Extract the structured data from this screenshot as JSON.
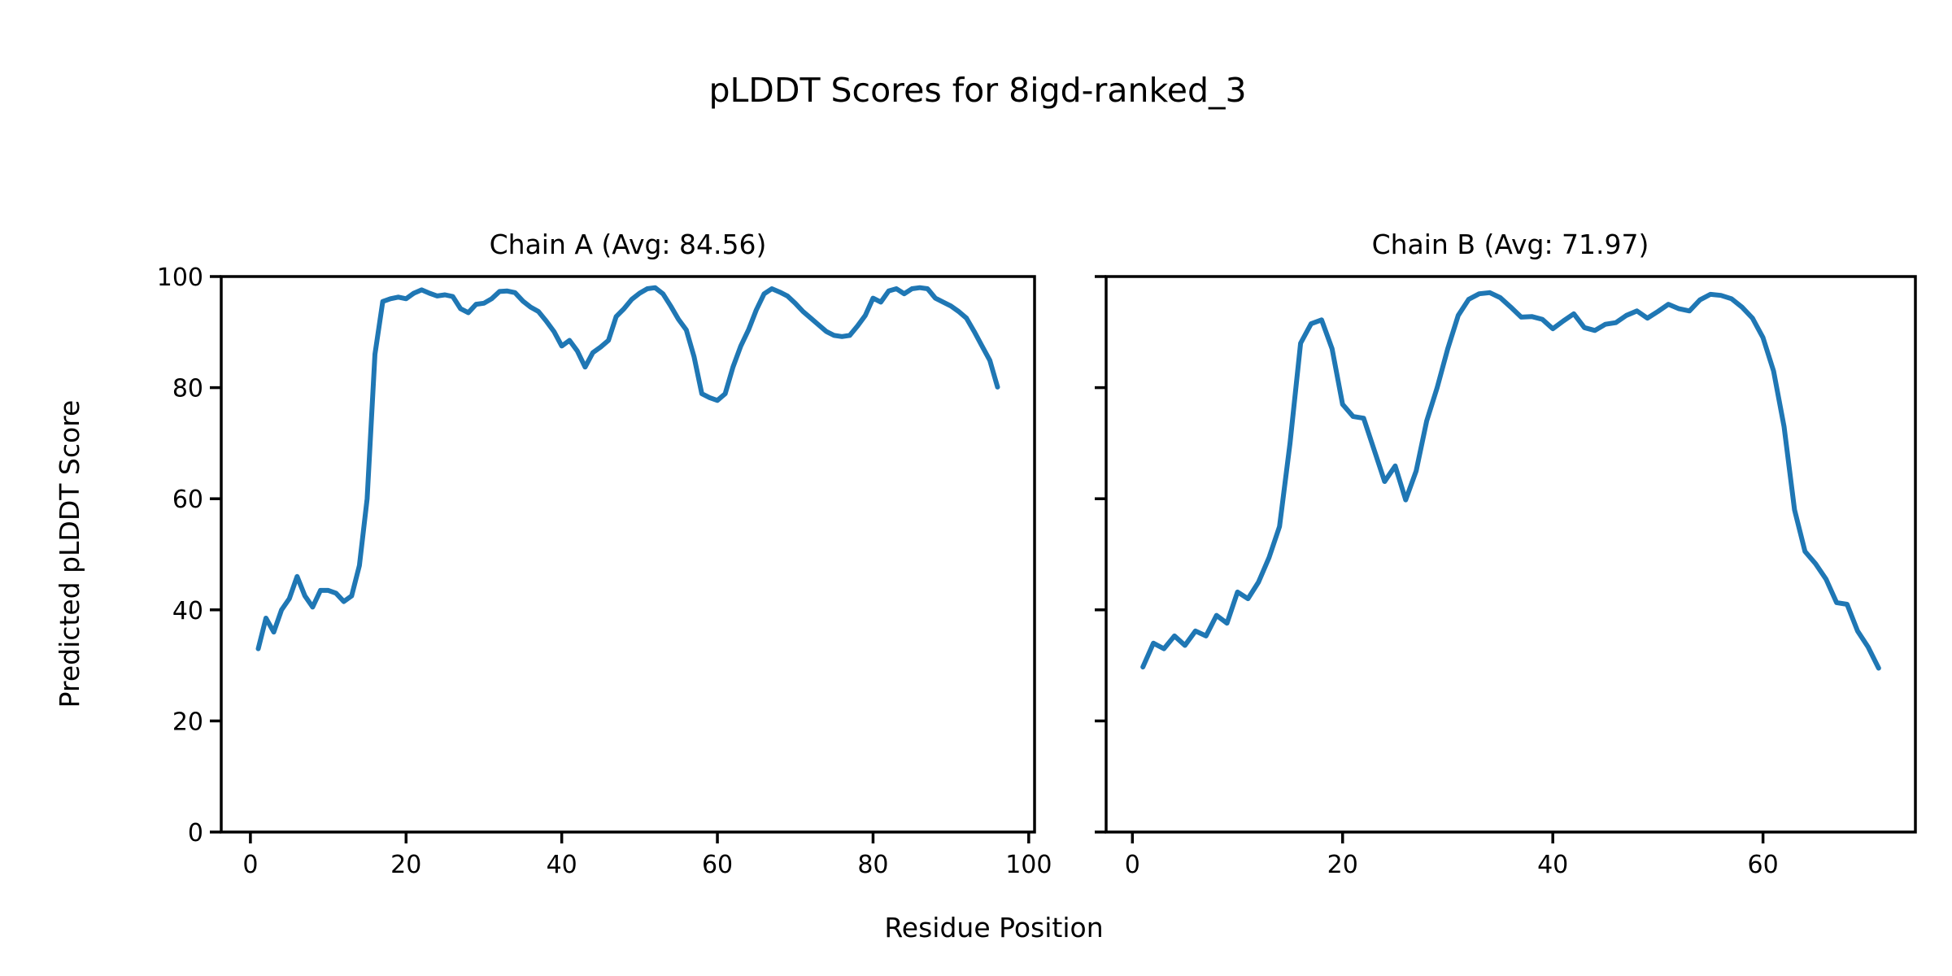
{
  "figure": {
    "title": "pLDDT Scores for 8igd-ranked_3",
    "xlabel": "Residue Position",
    "ylabel": "Predicted pLDDT Score",
    "line_color": "#1f77b4",
    "axis_color": "#000000",
    "background": "#ffffff"
  },
  "chart_data": [
    {
      "type": "line",
      "title": "Chain A (Avg: 84.56)",
      "chain": "A",
      "avg": 84.56,
      "xlabel": "Residue Position",
      "ylabel": "Predicted pLDDT Score",
      "legend": "none",
      "grid": false,
      "xlim": [
        -3.75,
        100.75
      ],
      "ylim": [
        0,
        100
      ],
      "x_ticks": [
        0,
        20,
        40,
        60,
        80,
        100
      ],
      "y_ticks": [
        0,
        20,
        40,
        60,
        80,
        100
      ],
      "y_tick_labels_visible": true,
      "x_start": 1,
      "values": [
        33,
        38.5,
        36,
        40,
        42,
        46,
        42.5,
        40.5,
        43.5,
        43.5,
        43,
        41.5,
        42.5,
        48,
        60,
        86,
        95.5,
        96,
        96.3,
        96,
        97,
        97.6,
        97,
        96.5,
        96.7,
        96.4,
        94.2,
        93.5,
        95,
        95.2,
        96,
        97.3,
        97.4,
        97.1,
        95.6,
        94.5,
        93.7,
        92,
        90.1,
        87.5,
        88.5,
        86.6,
        83.7,
        86.3,
        87.3,
        88.5,
        92.8,
        94.2,
        95.9,
        97,
        97.8,
        98,
        96.9,
        94.7,
        92.3,
        90.4,
        85.6,
        78.9,
        78.2,
        77.7,
        78.9,
        83.7,
        87.5,
        90.4,
        94,
        96.9,
        97.8,
        97.2,
        96.5,
        95.2,
        93.7,
        92.5,
        91.3,
        90.1,
        89.4,
        89.2,
        89.4,
        91.1,
        93,
        96.1,
        95.4,
        97.4,
        97.8,
        96.9,
        97.8,
        98,
        97.8,
        96.1,
        95.4,
        94.7,
        93.7,
        92.5,
        90.1,
        87.5,
        84.9,
        80.1
      ]
    },
    {
      "type": "line",
      "title": "Chain B (Avg: 71.97)",
      "chain": "B",
      "avg": 71.97,
      "xlabel": "Residue Position",
      "ylabel": "Predicted pLDDT Score",
      "legend": "none",
      "grid": false,
      "xlim": [
        -2.5,
        74.5
      ],
      "ylim": [
        0,
        100
      ],
      "x_ticks": [
        0,
        20,
        40,
        60
      ],
      "y_ticks": [
        0,
        20,
        40,
        60,
        80,
        100
      ],
      "y_tick_labels_visible": false,
      "x_start": 1,
      "values": [
        29.7,
        34,
        33,
        35.3,
        33.6,
        36.2,
        35.3,
        39,
        37.6,
        43.2,
        42,
        45,
        49.4,
        55,
        70,
        88,
        91.5,
        92.2,
        87,
        77,
        74.8,
        74.5,
        68.8,
        63.1,
        65.9,
        59.8,
        65,
        74,
        80,
        87,
        93,
        95.9,
        96.9,
        97.1,
        96.2,
        94.5,
        92.7,
        92.8,
        92.3,
        90.6,
        92,
        93.3,
        90.8,
        90.3,
        91.4,
        91.7,
        93,
        93.8,
        92.5,
        93.7,
        95,
        94.2,
        93.8,
        95.8,
        96.8,
        96.6,
        96,
        94.5,
        92.5,
        89,
        83,
        73,
        58,
        50.5,
        48.3,
        45.5,
        41.3,
        41,
        36.2,
        33.3,
        29.5
      ]
    }
  ]
}
